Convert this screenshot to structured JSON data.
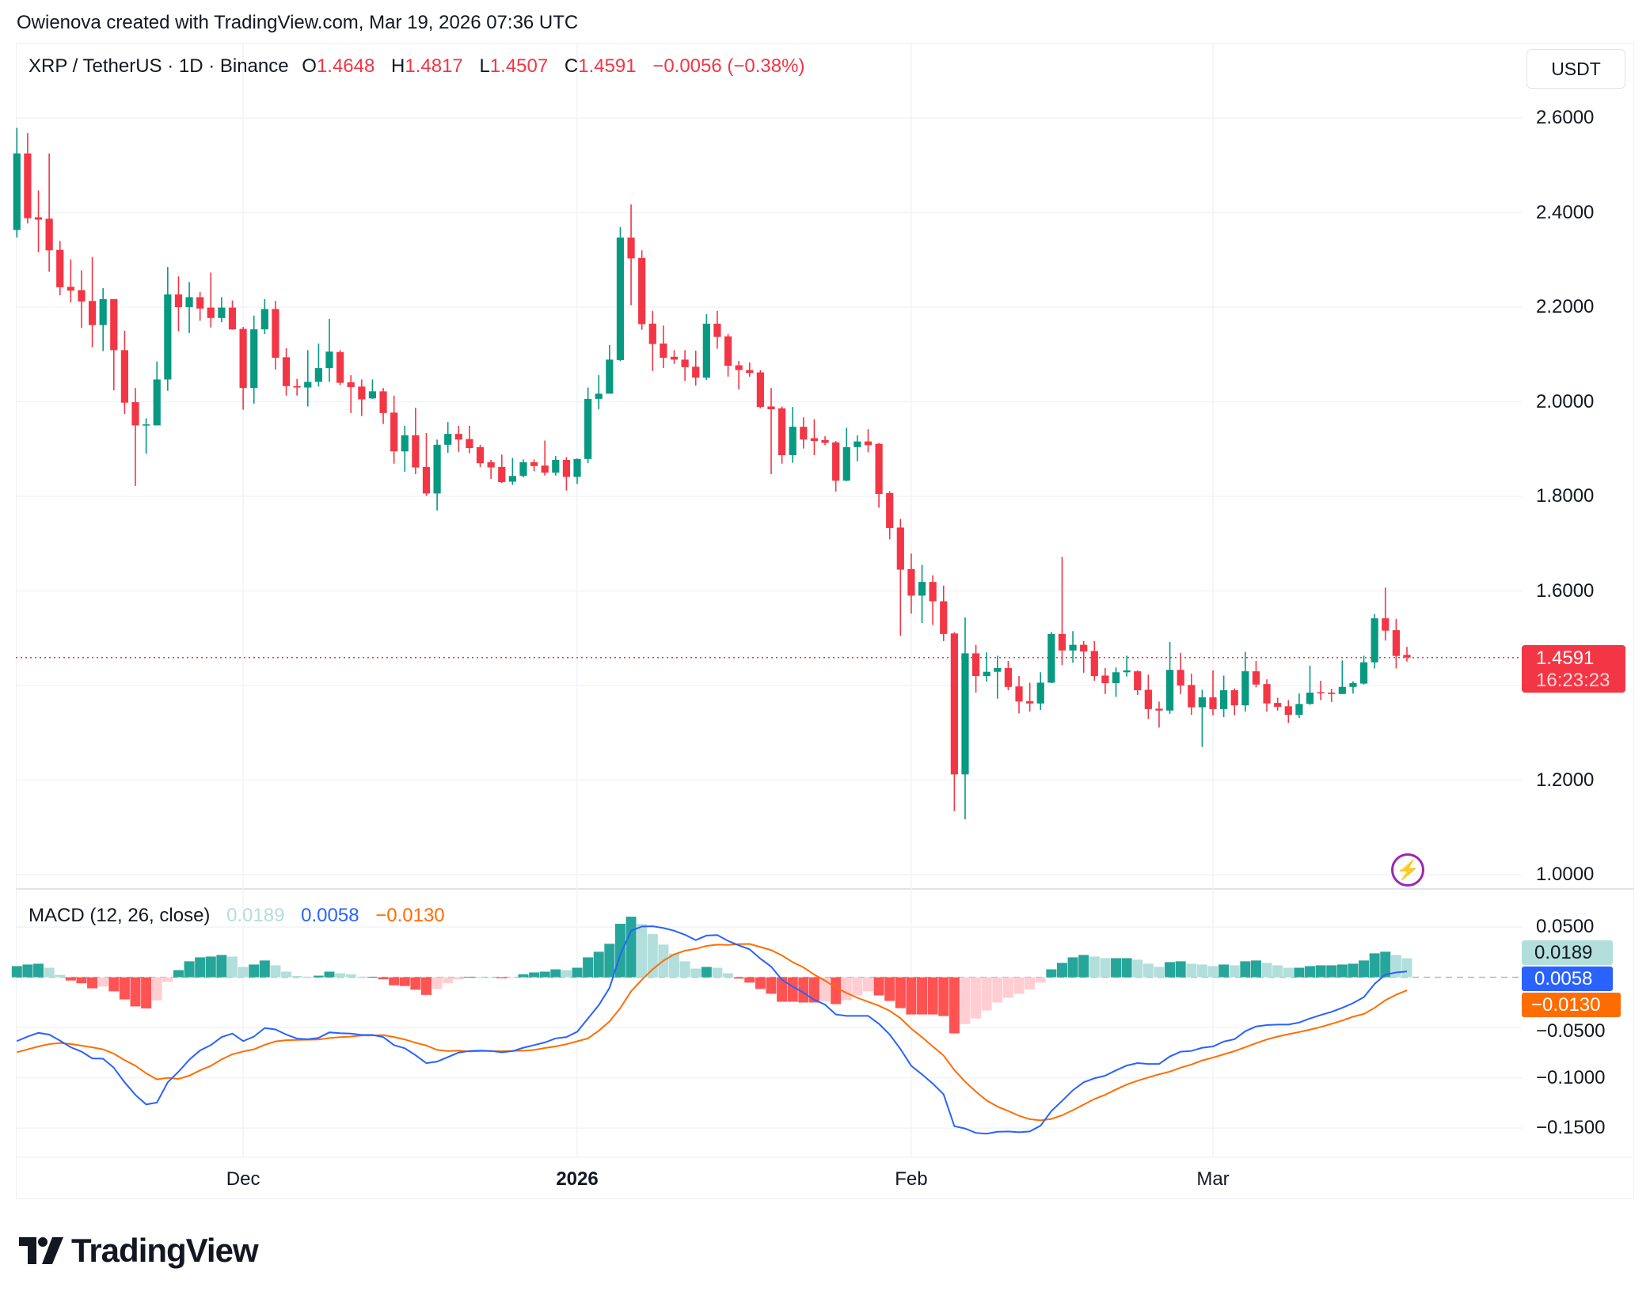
{
  "credit": "Owienova created with TradingView.com, Mar 19, 2026 07:36 UTC",
  "legend": {
    "symbol": "XRP / TetherUS · 1D · Binance",
    "o_label": "O",
    "o": "1.4648",
    "h_label": "H",
    "h": "1.4817",
    "l_label": "L",
    "l": "1.4507",
    "c_label": "C",
    "c": "1.4591",
    "change": "−0.0056 (−0.38%)"
  },
  "currency_button": "USDT",
  "last_price": {
    "value": "1.4591",
    "countdown": "16:23:23"
  },
  "macd_legend": {
    "title": "MACD (12, 26, close)",
    "histogram": "0.0189",
    "macd": "0.0058",
    "signal": "−0.0130"
  },
  "macd_badges": {
    "histogram": "0.0189",
    "macd": "0.0058",
    "signal": "−0.0130"
  },
  "logo": "TradingView",
  "icons": {
    "alert": "lightning-icon",
    "logo": "tradingview-logo-icon"
  },
  "colors": {
    "up": "#089981",
    "down": "#f23645",
    "hist_up_strong": "#26a69a",
    "hist_up_weak": "#b2dfdb",
    "hist_down_strong": "#ff5252",
    "hist_down_weak": "#ffcdd2",
    "macd": "#2962ff",
    "signal": "#ff6d00"
  },
  "chart_data": [
    {
      "type": "candlestick",
      "title": "XRP / TetherUS · 1D · Binance",
      "x_ticks": [
        "Dec",
        "2026",
        "Feb",
        "Mar"
      ],
      "y_ticks": [
        "2.6000",
        "2.4000",
        "2.2000",
        "2.0000",
        "1.8000",
        "1.6000",
        "1.2000",
        "1.0000"
      ],
      "ylim": [
        1.0,
        2.6
      ],
      "grid": true,
      "ohlc_fields": [
        "open",
        "high",
        "low",
        "close"
      ],
      "candles": [
        [
          2.363,
          2.579,
          2.347,
          2.525
        ],
        [
          2.525,
          2.568,
          2.377,
          2.388
        ],
        [
          2.39,
          2.447,
          2.316,
          2.385
        ],
        [
          2.387,
          2.525,
          2.275,
          2.32
        ],
        [
          2.321,
          2.34,
          2.225,
          2.242
        ],
        [
          2.243,
          2.301,
          2.21,
          2.235
        ],
        [
          2.236,
          2.278,
          2.156,
          2.212
        ],
        [
          2.213,
          2.306,
          2.115,
          2.162
        ],
        [
          2.162,
          2.24,
          2.107,
          2.217
        ],
        [
          2.217,
          2.217,
          2.024,
          2.109
        ],
        [
          2.109,
          2.15,
          1.974,
          1.998
        ],
        [
          1.999,
          2.029,
          1.822,
          1.95
        ],
        [
          1.95,
          1.965,
          1.89,
          1.952
        ],
        [
          1.95,
          2.085,
          1.95,
          2.047
        ],
        [
          2.047,
          2.285,
          2.023,
          2.227
        ],
        [
          2.227,
          2.265,
          2.149,
          2.2
        ],
        [
          2.2,
          2.253,
          2.145,
          2.221
        ],
        [
          2.221,
          2.232,
          2.171,
          2.197
        ],
        [
          2.199,
          2.273,
          2.157,
          2.177
        ],
        [
          2.177,
          2.221,
          2.168,
          2.199
        ],
        [
          2.199,
          2.214,
          2.152,
          2.153
        ],
        [
          2.154,
          2.158,
          1.983,
          2.029
        ],
        [
          2.029,
          2.182,
          1.996,
          2.153
        ],
        [
          2.153,
          2.217,
          2.143,
          2.196
        ],
        [
          2.196,
          2.213,
          2.068,
          2.093
        ],
        [
          2.094,
          2.113,
          2.013,
          2.033
        ],
        [
          2.033,
          2.048,
          2.013,
          2.03
        ],
        [
          2.03,
          2.109,
          1.99,
          2.042
        ],
        [
          2.042,
          2.123,
          2.032,
          2.071
        ],
        [
          2.071,
          2.175,
          2.042,
          2.106
        ],
        [
          2.105,
          2.109,
          2.035,
          2.04
        ],
        [
          2.041,
          2.056,
          1.976,
          2.031
        ],
        [
          2.032,
          2.047,
          1.97,
          2.005
        ],
        [
          2.007,
          2.047,
          2.006,
          2.022
        ],
        [
          2.022,
          2.029,
          1.953,
          1.976
        ],
        [
          1.977,
          2.013,
          1.869,
          1.895
        ],
        [
          1.895,
          1.949,
          1.852,
          1.929
        ],
        [
          1.929,
          1.987,
          1.847,
          1.861
        ],
        [
          1.862,
          1.934,
          1.801,
          1.806
        ],
        [
          1.806,
          1.92,
          1.77,
          1.909
        ],
        [
          1.909,
          1.957,
          1.892,
          1.932
        ],
        [
          1.932,
          1.949,
          1.894,
          1.92
        ],
        [
          1.921,
          1.949,
          1.891,
          1.902
        ],
        [
          1.904,
          1.909,
          1.862,
          1.87
        ],
        [
          1.872,
          1.877,
          1.837,
          1.861
        ],
        [
          1.862,
          1.888,
          1.828,
          1.83
        ],
        [
          1.831,
          1.881,
          1.824,
          1.843
        ],
        [
          1.843,
          1.878,
          1.84,
          1.872
        ],
        [
          1.872,
          1.878,
          1.853,
          1.864
        ],
        [
          1.865,
          1.918,
          1.844,
          1.85
        ],
        [
          1.85,
          1.885,
          1.844,
          1.877
        ],
        [
          1.877,
          1.883,
          1.812,
          1.841
        ],
        [
          1.841,
          1.88,
          1.826,
          1.879
        ],
        [
          1.879,
          2.03,
          1.87,
          2.006
        ],
        [
          2.006,
          2.056,
          1.984,
          2.017
        ],
        [
          2.017,
          2.12,
          2.017,
          2.089
        ],
        [
          2.088,
          2.369,
          2.086,
          2.347
        ],
        [
          2.347,
          2.417,
          2.204,
          2.303
        ],
        [
          2.304,
          2.32,
          2.152,
          2.164
        ],
        [
          2.165,
          2.192,
          2.065,
          2.122
        ],
        [
          2.123,
          2.161,
          2.071,
          2.093
        ],
        [
          2.095,
          2.109,
          2.08,
          2.089
        ],
        [
          2.089,
          2.109,
          2.044,
          2.073
        ],
        [
          2.074,
          2.108,
          2.034,
          2.051
        ],
        [
          2.051,
          2.185,
          2.046,
          2.165
        ],
        [
          2.165,
          2.192,
          2.112,
          2.137
        ],
        [
          2.138,
          2.143,
          2.053,
          2.076
        ],
        [
          2.077,
          2.086,
          2.026,
          2.067
        ],
        [
          2.067,
          2.083,
          2.053,
          2.061
        ],
        [
          2.062,
          2.067,
          1.986,
          1.989
        ],
        [
          1.99,
          2.029,
          1.847,
          1.984
        ],
        [
          1.986,
          1.99,
          1.869,
          1.887
        ],
        [
          1.887,
          1.989,
          1.871,
          1.947
        ],
        [
          1.947,
          1.967,
          1.901,
          1.92
        ],
        [
          1.923,
          1.963,
          1.887,
          1.917
        ],
        [
          1.919,
          1.927,
          1.908,
          1.913
        ],
        [
          1.914,
          1.917,
          1.81,
          1.833
        ],
        [
          1.833,
          1.945,
          1.832,
          1.904
        ],
        [
          1.904,
          1.929,
          1.874,
          1.916
        ],
        [
          1.916,
          1.942,
          1.893,
          1.908
        ],
        [
          1.911,
          1.913,
          1.776,
          1.805
        ],
        [
          1.807,
          1.811,
          1.709,
          1.733
        ],
        [
          1.734,
          1.752,
          1.505,
          1.645
        ],
        [
          1.646,
          1.679,
          1.552,
          1.59
        ],
        [
          1.59,
          1.655,
          1.532,
          1.619
        ],
        [
          1.619,
          1.633,
          1.528,
          1.578
        ],
        [
          1.578,
          1.611,
          1.494,
          1.509
        ],
        [
          1.51,
          1.513,
          1.134,
          1.212
        ],
        [
          1.212,
          1.544,
          1.117,
          1.468
        ],
        [
          1.468,
          1.486,
          1.385,
          1.42
        ],
        [
          1.42,
          1.47,
          1.408,
          1.429
        ],
        [
          1.429,
          1.463,
          1.372,
          1.437
        ],
        [
          1.437,
          1.452,
          1.39,
          1.397
        ],
        [
          1.398,
          1.42,
          1.341,
          1.366
        ],
        [
          1.367,
          1.406,
          1.345,
          1.362
        ],
        [
          1.362,
          1.428,
          1.348,
          1.406
        ],
        [
          1.406,
          1.513,
          1.405,
          1.509
        ],
        [
          1.509,
          1.672,
          1.443,
          1.474
        ],
        [
          1.474,
          1.515,
          1.448,
          1.486
        ],
        [
          1.486,
          1.494,
          1.427,
          1.472
        ],
        [
          1.473,
          1.494,
          1.41,
          1.42
        ],
        [
          1.421,
          1.437,
          1.382,
          1.405
        ],
        [
          1.405,
          1.438,
          1.376,
          1.428
        ],
        [
          1.428,
          1.463,
          1.419,
          1.432
        ],
        [
          1.43,
          1.432,
          1.38,
          1.39
        ],
        [
          1.391,
          1.423,
          1.329,
          1.35
        ],
        [
          1.351,
          1.366,
          1.311,
          1.347
        ],
        [
          1.347,
          1.492,
          1.34,
          1.433
        ],
        [
          1.433,
          1.469,
          1.382,
          1.4
        ],
        [
          1.401,
          1.425,
          1.338,
          1.354
        ],
        [
          1.354,
          1.391,
          1.27,
          1.375
        ],
        [
          1.375,
          1.432,
          1.337,
          1.35
        ],
        [
          1.35,
          1.421,
          1.333,
          1.39
        ],
        [
          1.39,
          1.394,
          1.337,
          1.358
        ],
        [
          1.358,
          1.471,
          1.345,
          1.43
        ],
        [
          1.43,
          1.452,
          1.396,
          1.402
        ],
        [
          1.403,
          1.413,
          1.345,
          1.362
        ],
        [
          1.363,
          1.374,
          1.347,
          1.355
        ],
        [
          1.356,
          1.369,
          1.321,
          1.338
        ],
        [
          1.338,
          1.383,
          1.331,
          1.361
        ],
        [
          1.361,
          1.442,
          1.359,
          1.385
        ],
        [
          1.386,
          1.41,
          1.369,
          1.384
        ],
        [
          1.385,
          1.393,
          1.365,
          1.382
        ],
        [
          1.382,
          1.453,
          1.382,
          1.397
        ],
        [
          1.397,
          1.409,
          1.383,
          1.405
        ],
        [
          1.404,
          1.463,
          1.402,
          1.449
        ],
        [
          1.449,
          1.551,
          1.436,
          1.542
        ],
        [
          1.542,
          1.607,
          1.495,
          1.516
        ],
        [
          1.517,
          1.541,
          1.436,
          1.4625
        ],
        [
          1.4648,
          1.4817,
          1.4507,
          1.4591
        ]
      ],
      "last_price": 1.4591
    },
    {
      "type": "macd",
      "title": "MACD (12, 26, close)",
      "y_ticks": [
        "0.0500",
        "−0.0500",
        "−0.1000",
        "−0.1500"
      ],
      "ylim": [
        -0.16,
        0.065
      ],
      "histogram": [
        0.0111,
        0.0127,
        0.0135,
        0.0095,
        0.0024,
        -0.0032,
        -0.006,
        -0.011,
        -0.0093,
        -0.014,
        -0.022,
        -0.029,
        -0.031,
        -0.023,
        -0.0045,
        0.0071,
        0.0159,
        0.0198,
        0.0206,
        0.0222,
        0.0206,
        0.0103,
        0.0127,
        0.0167,
        0.0119,
        0.0056,
        0.0013,
        0.0005,
        0.0016,
        0.0056,
        0.004,
        0.003,
        0.0005,
        0.0005,
        -0.002,
        -0.008,
        -0.0087,
        -0.0124,
        -0.0175,
        -0.0116,
        -0.006,
        -0.0019,
        0.0005,
        0.0003,
        0.0,
        -0.001,
        -0.0003,
        0.003,
        0.0048,
        0.0056,
        0.0079,
        0.0071,
        0.0095,
        0.0198,
        0.0254,
        0.0333,
        0.0532,
        0.0603,
        0.0529,
        0.0429,
        0.0325,
        0.0235,
        0.0159,
        0.0087,
        0.0103,
        0.0095,
        0.004,
        -0.0013,
        -0.0053,
        -0.0116,
        -0.0164,
        -0.0243,
        -0.0243,
        -0.0251,
        -0.0251,
        -0.0238,
        -0.0267,
        -0.0228,
        -0.018,
        -0.014,
        -0.018,
        -0.0235,
        -0.0307,
        -0.037,
        -0.037,
        -0.037,
        -0.0386,
        -0.0558,
        -0.0466,
        -0.041,
        -0.033,
        -0.0251,
        -0.0204,
        -0.0164,
        -0.0122,
        -0.0053,
        0.0079,
        0.0143,
        0.0198,
        0.0222,
        0.0206,
        0.019,
        0.019,
        0.019,
        0.0175,
        0.0135,
        0.0103,
        0.0151,
        0.0159,
        0.0135,
        0.0127,
        0.0111,
        0.0127,
        0.0119,
        0.0159,
        0.0167,
        0.0143,
        0.0119,
        0.0095,
        0.0095,
        0.0111,
        0.0119,
        0.0119,
        0.0127,
        0.0135,
        0.0167,
        0.0238,
        0.0254,
        0.0222,
        0.0189
      ],
      "macd": [
        -0.0635,
        -0.059,
        -0.0553,
        -0.057,
        -0.063,
        -0.0696,
        -0.074,
        -0.0807,
        -0.081,
        -0.09,
        -0.1045,
        -0.117,
        -0.1265,
        -0.1246,
        -0.1045,
        -0.094,
        -0.082,
        -0.0728,
        -0.0675,
        -0.0595,
        -0.056,
        -0.0635,
        -0.059,
        -0.0505,
        -0.0519,
        -0.057,
        -0.061,
        -0.0616,
        -0.0603,
        -0.0548,
        -0.0556,
        -0.056,
        -0.0574,
        -0.0574,
        -0.0595,
        -0.0675,
        -0.0706,
        -0.0775,
        -0.0854,
        -0.0839,
        -0.0794,
        -0.0749,
        -0.0733,
        -0.073,
        -0.0733,
        -0.0746,
        -0.0735,
        -0.0701,
        -0.0675,
        -0.0648,
        -0.0608,
        -0.0595,
        -0.0542,
        -0.041,
        -0.0278,
        -0.0106,
        0.0225,
        0.0463,
        0.0505,
        0.0508,
        0.049,
        0.0463,
        0.0423,
        0.037,
        0.0415,
        0.042,
        0.0362,
        0.0317,
        0.0278,
        0.0185,
        0.0106,
        -0.0026,
        -0.0093,
        -0.0153,
        -0.0225,
        -0.0272,
        -0.037,
        -0.0384,
        -0.0384,
        -0.0384,
        -0.0463,
        -0.0569,
        -0.0714,
        -0.0881,
        -0.0966,
        -0.1058,
        -0.1164,
        -0.1481,
        -0.1505,
        -0.1548,
        -0.1556,
        -0.1537,
        -0.1534,
        -0.1542,
        -0.1534,
        -0.1476,
        -0.1331,
        -0.123,
        -0.1124,
        -0.1045,
        -0.1005,
        -0.0979,
        -0.0926,
        -0.0878,
        -0.0854,
        -0.0862,
        -0.0862,
        -0.0788,
        -0.074,
        -0.0733,
        -0.0701,
        -0.0688,
        -0.064,
        -0.0616,
        -0.0537,
        -0.0489,
        -0.0476,
        -0.0471,
        -0.0471,
        -0.045,
        -0.041,
        -0.0376,
        -0.0344,
        -0.0304,
        -0.0257,
        -0.0198,
        -0.0066,
        0.0026,
        0.0048,
        0.0058
      ],
      "signal": [
        -0.0746,
        -0.0717,
        -0.0688,
        -0.0665,
        -0.0654,
        -0.0664,
        -0.068,
        -0.0697,
        -0.0717,
        -0.076,
        -0.0825,
        -0.088,
        -0.0955,
        -0.1016,
        -0.1,
        -0.1011,
        -0.0979,
        -0.0926,
        -0.0881,
        -0.0817,
        -0.0766,
        -0.0738,
        -0.0717,
        -0.0672,
        -0.0638,
        -0.0626,
        -0.0623,
        -0.0621,
        -0.0619,
        -0.0604,
        -0.0596,
        -0.059,
        -0.0579,
        -0.0579,
        -0.0575,
        -0.0595,
        -0.0619,
        -0.0651,
        -0.0679,
        -0.0723,
        -0.0734,
        -0.073,
        -0.0738,
        -0.0733,
        -0.0733,
        -0.0736,
        -0.0732,
        -0.0731,
        -0.0723,
        -0.0704,
        -0.0687,
        -0.0666,
        -0.0637,
        -0.0608,
        -0.0532,
        -0.0439,
        -0.0307,
        -0.014,
        -0.0024,
        0.0079,
        0.0165,
        0.0228,
        0.0264,
        0.0283,
        0.0312,
        0.0325,
        0.0322,
        0.033,
        0.0331,
        0.0301,
        0.027,
        0.0217,
        0.015,
        0.0098,
        0.0026,
        -0.0034,
        -0.0103,
        -0.0156,
        -0.0204,
        -0.0244,
        -0.0283,
        -0.0334,
        -0.0407,
        -0.0511,
        -0.0596,
        -0.0688,
        -0.0778,
        -0.0923,
        -0.1039,
        -0.1138,
        -0.1226,
        -0.1286,
        -0.133,
        -0.1378,
        -0.1412,
        -0.1423,
        -0.141,
        -0.1373,
        -0.1322,
        -0.1267,
        -0.1211,
        -0.1169,
        -0.1116,
        -0.1068,
        -0.1029,
        -0.0997,
        -0.0965,
        -0.0939,
        -0.0899,
        -0.0868,
        -0.0828,
        -0.0799,
        -0.0767,
        -0.0735,
        -0.0696,
        -0.0656,
        -0.0619,
        -0.059,
        -0.0566,
        -0.0545,
        -0.0521,
        -0.0495,
        -0.0463,
        -0.0431,
        -0.0392,
        -0.0365,
        -0.0304,
        -0.0228,
        -0.0174,
        -0.013
      ]
    }
  ]
}
